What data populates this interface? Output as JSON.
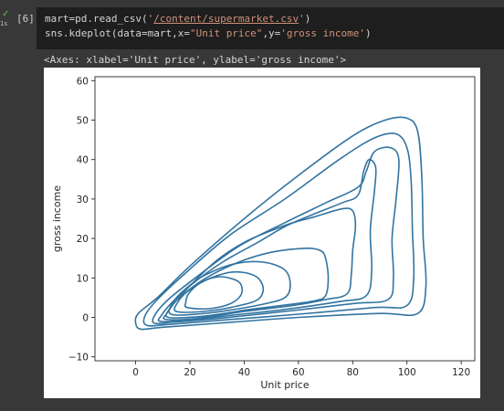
{
  "cell": {
    "execution_count": "[6]",
    "run_time": "1s",
    "code_lines": [
      [
        {
          "t": "mart=pd.read_csv(",
          "c": "plain"
        },
        {
          "t": "'",
          "c": "str"
        },
        {
          "t": "/content/supermarket.csv",
          "c": "strlink"
        },
        {
          "t": "'",
          "c": "str"
        },
        {
          "t": ")",
          "c": "plain"
        }
      ],
      [
        {
          "t": "sns.kdeplot(data=mart,x=",
          "c": "plain"
        },
        {
          "t": "\"Unit price\"",
          "c": "str"
        },
        {
          "t": ",y=",
          "c": "plain"
        },
        {
          "t": "'gross income'",
          "c": "str"
        },
        {
          "t": ")",
          "c": "plain"
        }
      ]
    ],
    "output_text": "<Axes: xlabel='Unit price', ylabel='gross income'>"
  },
  "chart_data": {
    "type": "kde-contour",
    "xlabel": "Unit price",
    "ylabel": "gross income",
    "xlim": [
      -15,
      125
    ],
    "ylim": [
      -11,
      61
    ],
    "xticks": [
      0,
      20,
      40,
      60,
      80,
      100,
      120
    ],
    "yticks": [
      -10,
      0,
      10,
      20,
      30,
      40,
      50,
      60
    ],
    "line_color": "#3274a1",
    "grid": false,
    "levels": [
      [
        [
          2.0,
          -3.0
        ],
        [
          10.0,
          -2.5
        ],
        [
          30.0,
          -1.5
        ],
        [
          60.0,
          0.0
        ],
        [
          90.0,
          1.0
        ],
        [
          104.0,
          1.0
        ],
        [
          107.0,
          8.0
        ],
        [
          106.0,
          20.0
        ],
        [
          105.5,
          35.0
        ],
        [
          104.0,
          47.0
        ],
        [
          100.0,
          50.5
        ],
        [
          92.0,
          50.0
        ],
        [
          80.0,
          46.0
        ],
        [
          60.0,
          36.0
        ],
        [
          40.0,
          25.0
        ],
        [
          20.0,
          13.0
        ],
        [
          8.0,
          5.0
        ],
        [
          1.0,
          1.0
        ],
        [
          0.0,
          -1.5
        ]
      ],
      [
        [
          4.0,
          -2.0
        ],
        [
          12.0,
          -1.8
        ],
        [
          30.0,
          -0.8
        ],
        [
          60.0,
          0.8
        ],
        [
          88.0,
          2.5
        ],
        [
          100.0,
          3.0
        ],
        [
          102.5,
          10.0
        ],
        [
          102.0,
          22.0
        ],
        [
          101.5,
          35.0
        ],
        [
          100.0,
          43.0
        ],
        [
          96.0,
          46.5
        ],
        [
          88.0,
          45.5
        ],
        [
          75.0,
          40.0
        ],
        [
          55.0,
          30.0
        ],
        [
          35.0,
          21.0
        ],
        [
          18.0,
          11.0
        ],
        [
          8.0,
          4.5
        ],
        [
          3.5,
          0.5
        ]
      ],
      [
        [
          7.0,
          -1.5
        ],
        [
          14.0,
          -1.2
        ],
        [
          30.0,
          -0.3
        ],
        [
          55.0,
          1.5
        ],
        [
          80.0,
          3.5
        ],
        [
          93.0,
          4.5
        ],
        [
          95.0,
          10.0
        ],
        [
          94.5,
          20.0
        ],
        [
          96.0,
          30.0
        ],
        [
          97.0,
          40.0
        ],
        [
          94.0,
          43.0
        ],
        [
          88.0,
          42.0
        ],
        [
          85.0,
          37.0
        ],
        [
          82.0,
          33.0
        ],
        [
          70.0,
          29.0
        ],
        [
          55.0,
          24.0
        ],
        [
          38.0,
          18.0
        ],
        [
          22.0,
          10.0
        ],
        [
          12.0,
          4.5
        ],
        [
          7.0,
          0.5
        ]
      ],
      [
        [
          9.0,
          -1.0
        ],
        [
          18.0,
          -0.8
        ],
        [
          35.0,
          0.5
        ],
        [
          55.0,
          2.0
        ],
        [
          75.0,
          4.0
        ],
        [
          85.0,
          5.5
        ],
        [
          87.0,
          12.0
        ],
        [
          86.5,
          22.0
        ],
        [
          88.0,
          32.0
        ],
        [
          88.5,
          38.0
        ],
        [
          86.0,
          40.0
        ],
        [
          84.0,
          37.0
        ],
        [
          82.0,
          31.0
        ],
        [
          76.0,
          29.0
        ],
        [
          65.0,
          26.0
        ],
        [
          55.0,
          23.0
        ],
        [
          45.0,
          19.0
        ],
        [
          32.0,
          14.0
        ],
        [
          20.0,
          8.0
        ],
        [
          13.0,
          3.5
        ],
        [
          9.5,
          0.5
        ]
      ],
      [
        [
          11.0,
          -0.5
        ],
        [
          22.0,
          -0.3
        ],
        [
          40.0,
          1.5
        ],
        [
          58.0,
          3.0
        ],
        [
          70.0,
          4.5
        ],
        [
          78.0,
          6.0
        ],
        [
          79.5,
          11.0
        ],
        [
          80.0,
          17.0
        ],
        [
          81.0,
          23.0
        ],
        [
          80.0,
          27.0
        ],
        [
          76.0,
          27.5
        ],
        [
          66.0,
          25.5
        ],
        [
          58.0,
          24.0
        ],
        [
          50.0,
          22.0
        ],
        [
          40.0,
          19.0
        ],
        [
          30.0,
          14.5
        ],
        [
          20.0,
          8.0
        ],
        [
          14.0,
          3.5
        ],
        [
          11.5,
          1.0
        ]
      ],
      [
        [
          12.0,
          0.0
        ],
        [
          25.0,
          0.3
        ],
        [
          42.0,
          2.0
        ],
        [
          56.0,
          3.2
        ],
        [
          66.0,
          4.2
        ],
        [
          70.0,
          5.5
        ],
        [
          71.0,
          10.0
        ],
        [
          70.0,
          15.0
        ],
        [
          68.0,
          17.0
        ],
        [
          62.0,
          17.5
        ],
        [
          50.0,
          16.5
        ],
        [
          38.0,
          14.0
        ],
        [
          26.0,
          10.0
        ],
        [
          17.0,
          5.5
        ],
        [
          13.0,
          2.5
        ]
      ],
      [
        [
          13.0,
          0.8
        ],
        [
          25.0,
          1.0
        ],
        [
          38.0,
          2.2
        ],
        [
          48.0,
          3.5
        ],
        [
          55.0,
          5.0
        ],
        [
          57.0,
          8.0
        ],
        [
          55.0,
          12.0
        ],
        [
          47.0,
          14.0
        ],
        [
          36.0,
          13.5
        ],
        [
          25.0,
          10.5
        ],
        [
          18.0,
          7.0
        ],
        [
          14.0,
          4.0
        ]
      ],
      [
        [
          15.0,
          1.5
        ],
        [
          25.0,
          1.5
        ],
        [
          37.0,
          2.8
        ],
        [
          45.0,
          4.5
        ],
        [
          47.0,
          7.5
        ],
        [
          44.0,
          10.5
        ],
        [
          36.0,
          11.5
        ],
        [
          26.0,
          9.5
        ],
        [
          19.0,
          6.5
        ],
        [
          15.5,
          3.8
        ]
      ],
      [
        [
          19.0,
          2.5
        ],
        [
          27.0,
          2.2
        ],
        [
          35.0,
          3.5
        ],
        [
          39.0,
          6.0
        ],
        [
          38.0,
          9.0
        ],
        [
          31.0,
          10.3
        ],
        [
          24.0,
          8.8
        ],
        [
          19.5,
          6.0
        ],
        [
          18.5,
          3.8
        ]
      ]
    ]
  }
}
